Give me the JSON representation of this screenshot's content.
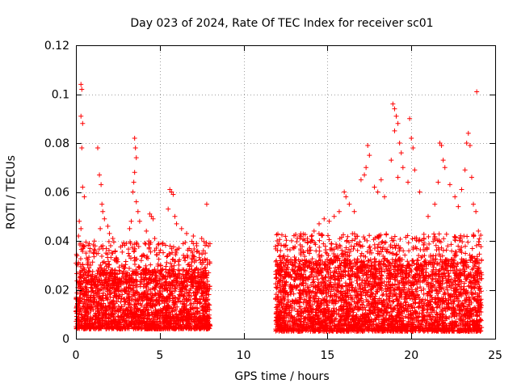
{
  "chart_data": {
    "type": "scatter",
    "title": "Day 023 of 2024, Rate Of TEC Index for receiver sc01",
    "xlabel": "GPS time / hours",
    "ylabel": "ROTI / TECUs",
    "xlim": [
      0,
      25
    ],
    "ylim": [
      0,
      0.12
    ],
    "xticks": [
      0,
      5,
      10,
      15,
      20,
      25
    ],
    "xtick_labels": [
      "0",
      "5",
      "10",
      "15",
      "20",
      "25"
    ],
    "yticks": [
      0,
      0.02,
      0.04,
      0.06,
      0.08,
      0.1,
      0.12
    ],
    "ytick_labels": [
      "0",
      "0.02",
      "0.04",
      "0.06",
      "0.08",
      "0.1",
      "0.12"
    ],
    "grid": true,
    "marker": "+",
    "color": "#ff0000",
    "segments": [
      {
        "x_start": 0.0,
        "x_end": 8.0,
        "baseline_min": 0.004,
        "baseline_max": 0.022
      },
      {
        "x_start": 11.9,
        "x_end": 24.2,
        "baseline_min": 0.003,
        "baseline_max": 0.025
      }
    ],
    "series": [
      {
        "name": "ROTI",
        "points": [
          [
            0.3,
            0.104
          ],
          [
            0.35,
            0.102
          ],
          [
            0.3,
            0.091
          ],
          [
            0.4,
            0.088
          ],
          [
            0.35,
            0.078
          ],
          [
            1.3,
            0.078
          ],
          [
            0.4,
            0.062
          ],
          [
            0.5,
            0.058
          ],
          [
            0.2,
            0.048
          ],
          [
            0.3,
            0.045
          ],
          [
            0.15,
            0.042
          ],
          [
            0.25,
            0.039
          ],
          [
            0.45,
            0.038
          ],
          [
            0.6,
            0.035
          ],
          [
            1.4,
            0.067
          ],
          [
            1.5,
            0.063
          ],
          [
            1.55,
            0.055
          ],
          [
            1.6,
            0.052
          ],
          [
            1.7,
            0.049
          ],
          [
            1.45,
            0.045
          ],
          [
            1.9,
            0.046
          ],
          [
            2.0,
            0.043
          ],
          [
            2.2,
            0.041
          ],
          [
            3.3,
            0.048
          ],
          [
            3.5,
            0.082
          ],
          [
            3.55,
            0.078
          ],
          [
            3.6,
            0.074
          ],
          [
            3.5,
            0.068
          ],
          [
            3.45,
            0.064
          ],
          [
            3.4,
            0.06
          ],
          [
            3.6,
            0.056
          ],
          [
            3.7,
            0.052
          ],
          [
            3.8,
            0.048
          ],
          [
            3.2,
            0.045
          ],
          [
            4.4,
            0.051
          ],
          [
            4.5,
            0.05
          ],
          [
            4.6,
            0.049
          ],
          [
            4.2,
            0.044
          ],
          [
            4.7,
            0.041
          ],
          [
            5.6,
            0.061
          ],
          [
            5.7,
            0.06
          ],
          [
            5.8,
            0.059
          ],
          [
            5.5,
            0.053
          ],
          [
            5.9,
            0.05
          ],
          [
            6.0,
            0.047
          ],
          [
            6.3,
            0.045
          ],
          [
            6.6,
            0.043
          ],
          [
            7.0,
            0.042
          ],
          [
            7.5,
            0.041
          ],
          [
            7.8,
            0.055
          ],
          [
            7.2,
            0.038
          ],
          [
            7.6,
            0.036
          ],
          [
            12.0,
            0.04
          ],
          [
            12.1,
            0.039
          ],
          [
            12.2,
            0.036
          ],
          [
            12.4,
            0.034
          ],
          [
            13.0,
            0.037
          ],
          [
            13.4,
            0.036
          ],
          [
            13.8,
            0.041
          ],
          [
            14.2,
            0.044
          ],
          [
            14.5,
            0.047
          ],
          [
            14.8,
            0.049
          ],
          [
            15.1,
            0.048
          ],
          [
            15.4,
            0.05
          ],
          [
            15.7,
            0.052
          ],
          [
            16.0,
            0.06
          ],
          [
            16.1,
            0.058
          ],
          [
            16.3,
            0.055
          ],
          [
            16.6,
            0.052
          ],
          [
            17.0,
            0.065
          ],
          [
            17.2,
            0.067
          ],
          [
            17.4,
            0.079
          ],
          [
            17.5,
            0.075
          ],
          [
            17.3,
            0.07
          ],
          [
            17.8,
            0.062
          ],
          [
            18.0,
            0.06
          ],
          [
            18.2,
            0.065
          ],
          [
            18.4,
            0.058
          ],
          [
            18.9,
            0.096
          ],
          [
            19.0,
            0.094
          ],
          [
            19.1,
            0.091
          ],
          [
            19.2,
            0.088
          ],
          [
            19.0,
            0.085
          ],
          [
            19.3,
            0.08
          ],
          [
            19.4,
            0.076
          ],
          [
            18.8,
            0.073
          ],
          [
            19.5,
            0.07
          ],
          [
            19.2,
            0.066
          ],
          [
            19.9,
            0.09
          ],
          [
            20.0,
            0.082
          ],
          [
            20.1,
            0.078
          ],
          [
            20.2,
            0.069
          ],
          [
            19.8,
            0.064
          ],
          [
            20.5,
            0.06
          ],
          [
            21.0,
            0.05
          ],
          [
            21.4,
            0.055
          ],
          [
            21.7,
            0.08
          ],
          [
            21.8,
            0.079
          ],
          [
            21.9,
            0.073
          ],
          [
            22.0,
            0.07
          ],
          [
            21.6,
            0.064
          ],
          [
            22.3,
            0.063
          ],
          [
            22.6,
            0.058
          ],
          [
            22.8,
            0.054
          ],
          [
            23.3,
            0.08
          ],
          [
            23.4,
            0.084
          ],
          [
            23.5,
            0.079
          ],
          [
            23.2,
            0.069
          ],
          [
            23.6,
            0.066
          ],
          [
            23.0,
            0.061
          ],
          [
            23.7,
            0.055
          ],
          [
            23.85,
            0.052
          ],
          [
            23.9,
            0.101
          ],
          [
            24.0,
            0.044
          ]
        ]
      }
    ]
  }
}
